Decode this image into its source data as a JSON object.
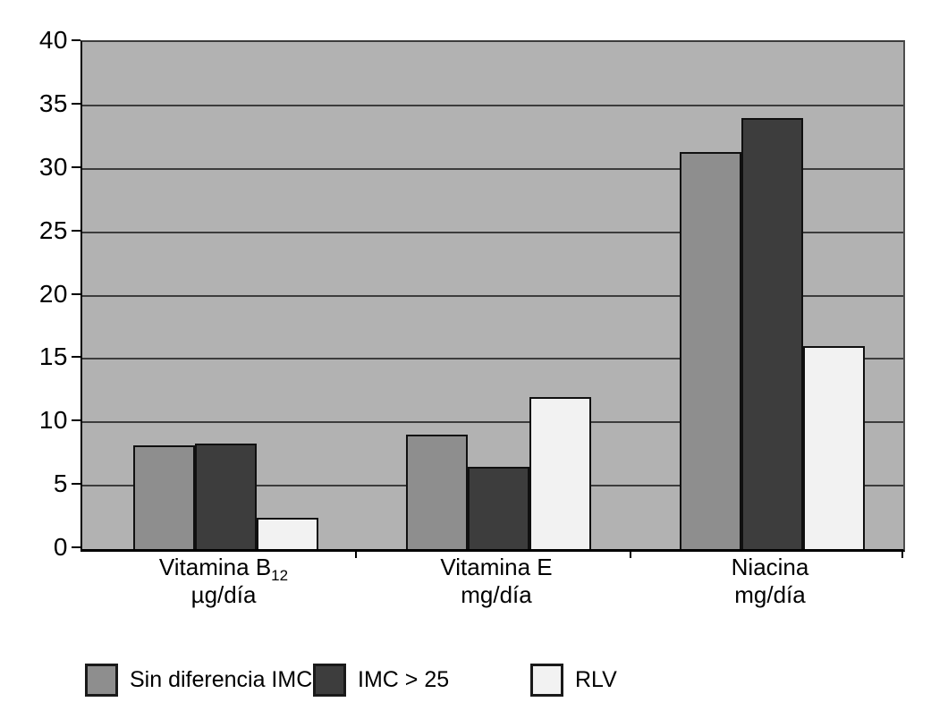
{
  "chart_data": {
    "type": "bar",
    "title": "",
    "categories": [
      {
        "label": "Vitamina B",
        "label_sub": "12",
        "unit": "µg/día"
      },
      {
        "label": "Vitamina E",
        "label_sub": "",
        "unit": "mg/día"
      },
      {
        "label": "Niacina",
        "label_sub": "",
        "unit": "mg/día"
      }
    ],
    "series": [
      {
        "name": "Sin diferencia IMC",
        "color": "#8e8e8e",
        "values": [
          8.2,
          9.0,
          31.3
        ]
      },
      {
        "name": "IMC > 25",
        "color": "#3d3d3d",
        "values": [
          8.3,
          6.5,
          34.0
        ]
      },
      {
        "name": "RLV",
        "color": "#f2f2f2",
        "values": [
          2.5,
          12.0,
          16.0
        ]
      }
    ],
    "y_axis": {
      "min": 0,
      "max": 40,
      "step": 5,
      "tick_labels": [
        "0",
        "5",
        "10",
        "15",
        "20",
        "25",
        "30",
        "35",
        "40"
      ]
    },
    "plot_background": "#b2b2b2",
    "gridline_color": "#3c3c3c",
    "bar_border_color": "#101010",
    "legend_position": "bottom-left",
    "grid": true
  }
}
